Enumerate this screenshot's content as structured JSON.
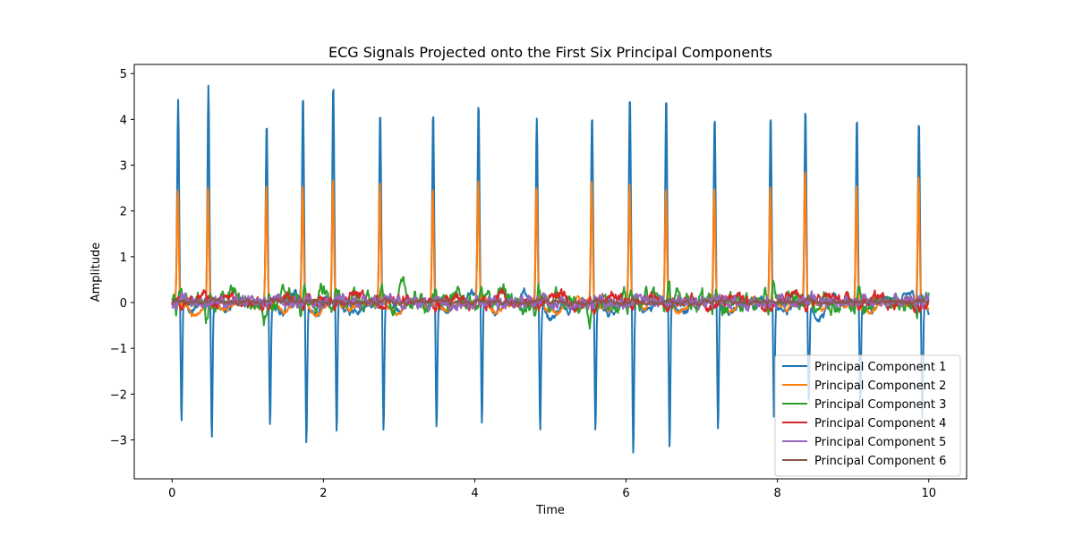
{
  "chart_data": {
    "type": "line",
    "title": "ECG Signals Projected onto the First Six Principal Components",
    "xlabel": "Time",
    "ylabel": "Amplitude",
    "xlim": [
      -0.5,
      10.5
    ],
    "ylim": [
      -3.85,
      5.2
    ],
    "xticks": [
      0,
      2,
      4,
      6,
      8,
      10
    ],
    "yticks": [
      -3,
      -2,
      -1,
      0,
      1,
      2,
      3,
      4,
      5
    ],
    "grid": false,
    "legend_position": "lower-right",
    "beats": [
      0.08,
      0.48,
      1.25,
      1.73,
      2.13,
      2.75,
      3.45,
      4.05,
      4.82,
      5.55,
      6.05,
      6.53,
      7.17,
      7.91,
      8.37,
      9.05,
      9.87
    ],
    "series": [
      {
        "name": "Principal Component 1",
        "color": "#1f77b4",
        "peaks": [
          4.28,
          4.78,
          3.9,
          4.4,
          4.78,
          4.26,
          4.18,
          4.23,
          4.14,
          4.17,
          4.42,
          4.51,
          4.12,
          4.2,
          4.43,
          4.14,
          4.06
        ],
        "troughs": [
          -2.72,
          -2.9,
          -2.6,
          -3.05,
          -3.02,
          -2.78,
          -2.73,
          -2.77,
          -2.65,
          -2.68,
          -3.37,
          -3.2,
          -2.83,
          -2.42,
          -2.0,
          -2.25,
          -2.5
        ]
      },
      {
        "name": "Principal Component 2",
        "color": "#ff7f0e",
        "peaks": [
          2.47,
          2.63,
          2.47,
          2.62,
          2.61,
          2.6,
          2.57,
          2.56,
          2.53,
          2.65,
          2.57,
          2.44,
          2.41,
          2.58,
          2.79,
          2.64,
          2.65
        ]
      },
      {
        "name": "Principal Component 3",
        "color": "#2ca02c"
      },
      {
        "name": "Principal Component 4",
        "color": "#d62728"
      },
      {
        "name": "Principal Component 5",
        "color": "#9467bd"
      },
      {
        "name": "Principal Component 6",
        "color": "#8c564b"
      }
    ]
  }
}
